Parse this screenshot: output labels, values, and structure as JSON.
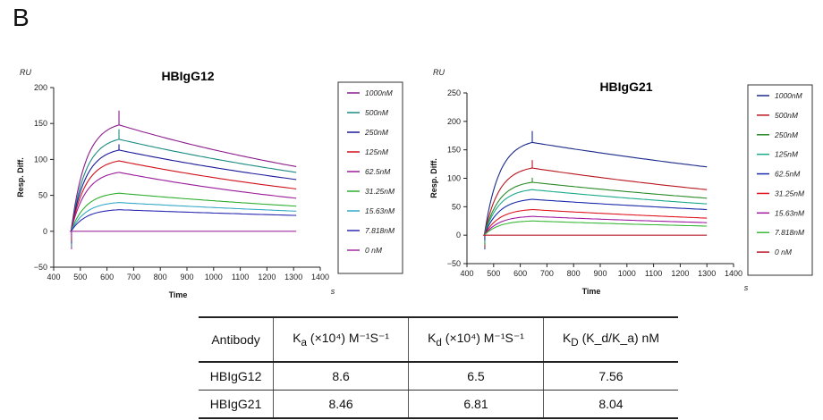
{
  "panel_label": "B",
  "chart_data": [
    {
      "type": "line",
      "title": "HBIgG12",
      "unit_label": "RU",
      "ylabel": "Resp. Diff.",
      "xlabel": "Time",
      "x_unit": "s",
      "xlim": [
        400,
        1400
      ],
      "ylim": [
        -50,
        200
      ],
      "x_ticks": [
        400,
        500,
        600,
        700,
        800,
        900,
        1000,
        1100,
        1200,
        1300,
        1400
      ],
      "y_ticks": [
        -50,
        0,
        50,
        100,
        150,
        200
      ],
      "legend_position": "right",
      "injection_start": 465,
      "injection_end": 645,
      "run_end": 1310,
      "series": [
        {
          "name": "1000nM",
          "color": "#8b1a8b",
          "peak": 148,
          "end": 90
        },
        {
          "name": "500nM",
          "color": "#1a8a82",
          "peak": 128,
          "end": 82
        },
        {
          "name": "250nM",
          "color": "#1a1a9a",
          "peak": 113,
          "end": 72
        },
        {
          "name": "125nM",
          "color": "#d0111a",
          "peak": 98,
          "end": 59
        },
        {
          "name": "62.5nM",
          "color": "#9a1a9a",
          "peak": 82,
          "end": 46
        },
        {
          "name": "31.25nM",
          "color": "#2fae2f",
          "peak": 53,
          "end": 35
        },
        {
          "name": "15.63nM",
          "color": "#35a9c8",
          "peak": 40,
          "end": 28
        },
        {
          "name": "7.818nM",
          "color": "#2a2ab2",
          "peak": 30,
          "end": 22
        },
        {
          "name": "0 nM",
          "color": "#a2289e",
          "peak": 0,
          "end": 0
        }
      ]
    },
    {
      "type": "line",
      "title": "HBIgG21",
      "unit_label": "RU",
      "ylabel": "Resp. Diff.",
      "xlabel": "Time",
      "x_unit": "s",
      "xlim": [
        400,
        1400
      ],
      "ylim": [
        -50,
        250
      ],
      "x_ticks": [
        400,
        500,
        600,
        700,
        800,
        900,
        1000,
        1100,
        1200,
        1300,
        1400
      ],
      "y_ticks": [
        -50,
        0,
        50,
        100,
        150,
        200,
        250
      ],
      "legend_position": "right",
      "injection_start": 465,
      "injection_end": 645,
      "run_end": 1300,
      "series": [
        {
          "name": "1000nM",
          "color": "#1a2a8a",
          "peak": 163,
          "end": 120
        },
        {
          "name": "500nM",
          "color": "#b8161e",
          "peak": 118,
          "end": 80
        },
        {
          "name": "250nM",
          "color": "#2a8a2a",
          "peak": 93,
          "end": 65
        },
        {
          "name": "125nM",
          "color": "#1aaa8a",
          "peak": 80,
          "end": 55
        },
        {
          "name": "62.5nM",
          "color": "#1a2aaa",
          "peak": 63,
          "end": 45
        },
        {
          "name": "31.25nM",
          "color": "#e0141e",
          "peak": 45,
          "end": 30
        },
        {
          "name": "15.63nM",
          "color": "#a01aa0",
          "peak": 33,
          "end": 22
        },
        {
          "name": "7.818nM",
          "color": "#3ab83a",
          "peak": 25,
          "end": 16
        },
        {
          "name": "0 nM",
          "color": "#b81a2a",
          "peak": 0,
          "end": 0
        }
      ]
    }
  ],
  "table": {
    "headers": [
      {
        "main": "Antibody",
        "sub": "",
        "rest": ""
      },
      {
        "main": "K",
        "sub": "a",
        "rest": " (×10⁴) M⁻¹S⁻¹"
      },
      {
        "main": "K",
        "sub": "d",
        "rest": " (×10⁴) M⁻¹S⁻¹"
      },
      {
        "main": "K",
        "sub": "D",
        "rest": " (K_d/K_a) nM"
      }
    ],
    "rows": [
      [
        "HBIgG12",
        "8.6",
        "6.5",
        "7.56"
      ],
      [
        "HBIgG21",
        "8.46",
        "6.81",
        "8.04"
      ]
    ]
  }
}
